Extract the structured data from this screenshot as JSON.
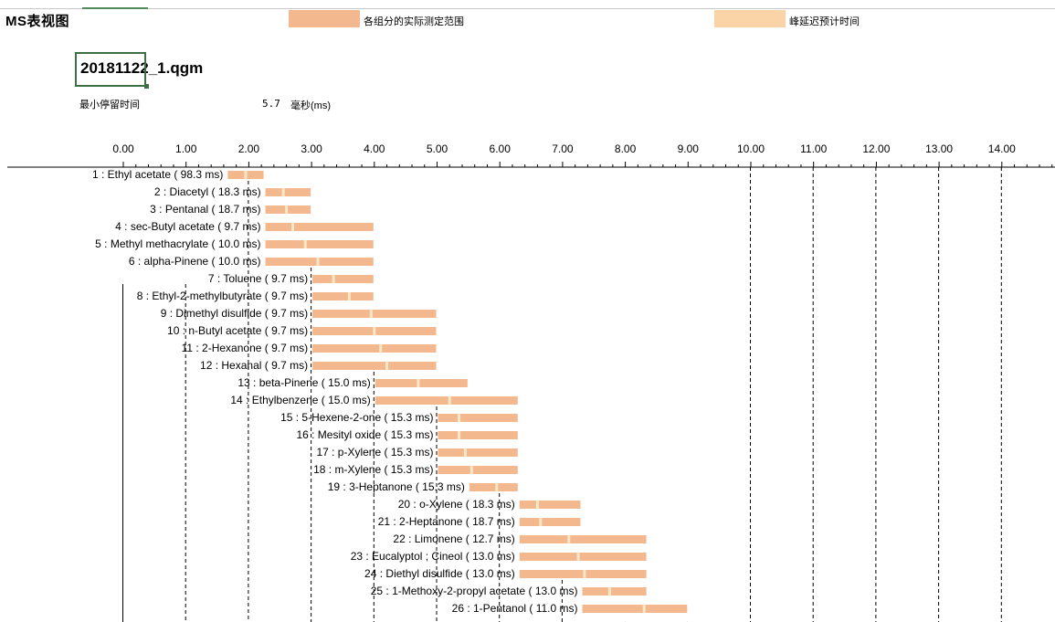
{
  "view_title": "MS表视图",
  "legend": {
    "actual_range": {
      "label": "各组分的实际测定范围",
      "color": "#f4b88f"
    },
    "delay_time": {
      "label": "峰延迟预计时间",
      "color": "#fad4a6"
    }
  },
  "file_name": "20181122_1.qgm",
  "min_dwell": {
    "label": "最小停留时间",
    "value": "5.7",
    "unit": "毫秒(ms)"
  },
  "colors": {
    "bar": "#f4b88f",
    "marker": "#fde7c4",
    "grid": "#000000",
    "accent": "#3d6e46"
  },
  "chart_data": {
    "type": "gantt",
    "xlabel": "",
    "ylabel": "",
    "xlim": [
      0,
      15
    ],
    "x_ticks": [
      "0.00",
      "1.00",
      "2.00",
      "3.00",
      "4.00",
      "5.00",
      "6.00",
      "7.00",
      "8.00",
      "9.00",
      "10.00",
      "11.00",
      "12.00",
      "13.00",
      "14.00",
      "1"
    ],
    "grid": "vertical dashed",
    "compounds": [
      {
        "label": "1 : Ethyl acetate ( 98.3 ms)",
        "start": 1.65,
        "end": 2.25,
        "peak": 1.95
      },
      {
        "label": "2 : Diacetyl ( 18.3 ms)",
        "start": 2.25,
        "end": 3.0,
        "peak": 2.55
      },
      {
        "label": "3 : Pentanal ( 18.7 ms)",
        "start": 2.25,
        "end": 3.0,
        "peak": 2.6
      },
      {
        "label": "4 : sec-Butyl acetate ( 9.7 ms)",
        "start": 2.25,
        "end": 4.0,
        "peak": 2.7
      },
      {
        "label": "5 : Methyl methacrylate ( 10.0 ms)",
        "start": 2.25,
        "end": 4.0,
        "peak": 2.9
      },
      {
        "label": "6 : alpha-Pinene ( 10.0 ms)",
        "start": 2.25,
        "end": 4.0,
        "peak": 3.1
      },
      {
        "label": "7 : Toluene ( 9.7 ms)",
        "start": 3.0,
        "end": 4.0,
        "peak": 3.35
      },
      {
        "label": "8 : Ethyl-2-methylbutyrate ( 9.7 ms)",
        "start": 3.0,
        "end": 4.0,
        "peak": 3.6
      },
      {
        "label": "9 : Dimethyl disulfide ( 9.7 ms)",
        "start": 3.0,
        "end": 5.0,
        "peak": 3.95
      },
      {
        "label": "10 : n-Butyl acetate ( 9.7 ms)",
        "start": 3.0,
        "end": 5.0,
        "peak": 4.0
      },
      {
        "label": "11 : 2-Hexanone ( 9.7 ms)",
        "start": 3.0,
        "end": 5.0,
        "peak": 4.1
      },
      {
        "label": "12 : Hexanal ( 9.7 ms)",
        "start": 3.0,
        "end": 5.0,
        "peak": 4.2
      },
      {
        "label": "13 : beta-Pinene ( 15.0 ms)",
        "start": 4.0,
        "end": 5.5,
        "peak": 4.7
      },
      {
        "label": "14 : Ethylbenzene ( 15.0 ms)",
        "start": 4.0,
        "end": 6.3,
        "peak": 5.2
      },
      {
        "label": "15 : 5-Hexene-2-one ( 15.3 ms)",
        "start": 5.0,
        "end": 6.3,
        "peak": 5.35
      },
      {
        "label": "16 : Mesityl oxide ( 15.3 ms)",
        "start": 5.0,
        "end": 6.3,
        "peak": 5.35
      },
      {
        "label": "17 : p-Xylene ( 15.3 ms)",
        "start": 5.0,
        "end": 6.3,
        "peak": 5.45
      },
      {
        "label": "18 : m-Xylene ( 15.3 ms)",
        "start": 5.0,
        "end": 6.3,
        "peak": 5.55
      },
      {
        "label": "19 : 3-Heptanone ( 15.3 ms)",
        "start": 5.5,
        "end": 6.3,
        "peak": 5.95
      },
      {
        "label": "20 : o-Xylene ( 18.3 ms)",
        "start": 6.3,
        "end": 7.3,
        "peak": 6.6
      },
      {
        "label": "21 : 2-Heptanone ( 18.7 ms)",
        "start": 6.3,
        "end": 7.3,
        "peak": 6.65
      },
      {
        "label": "22 : Limonene ( 12.7 ms)",
        "start": 6.3,
        "end": 8.35,
        "peak": 7.1
      },
      {
        "label": "23 : Eucalyptol ; Cineol ( 13.0 ms)",
        "start": 6.3,
        "end": 8.35,
        "peak": 7.25
      },
      {
        "label": "24 : Diethyl disulfide ( 13.0 ms)",
        "start": 6.3,
        "end": 8.35,
        "peak": 7.35
      },
      {
        "label": "25 : 1-Methoxy-2-propyl acetate ( 13.0 ms)",
        "start": 7.3,
        "end": 8.35,
        "peak": 7.75
      },
      {
        "label": "26 : 1-Pentanol ( 11.0 ms)",
        "start": 7.3,
        "end": 9.0,
        "peak": 8.3
      }
    ]
  }
}
